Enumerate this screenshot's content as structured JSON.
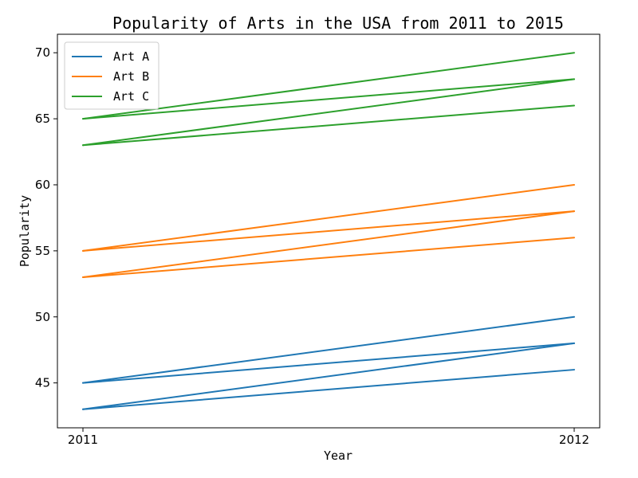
{
  "chart_data": {
    "type": "line",
    "title": "Popularity of Arts in the USA from 2011 to 2015",
    "xlabel": "Year",
    "ylabel": "Popularity",
    "x": [
      2011,
      2012
    ],
    "ylim": [
      41.6,
      71.4
    ],
    "yticks": [
      45,
      50,
      55,
      60,
      65,
      70
    ],
    "xticks": [
      "2011",
      "2012"
    ],
    "legend": {
      "placement": "top-left",
      "entries": [
        "Art A",
        "Art B",
        "Art C"
      ]
    },
    "series": [
      {
        "name": "Art A",
        "color": "#1f77b4",
        "values": [
          45,
          50
        ]
      },
      {
        "name": "Art A",
        "color": "#1f77b4",
        "values": [
          45,
          48
        ]
      },
      {
        "name": "Art A",
        "color": "#1f77b4",
        "values": [
          43,
          48
        ]
      },
      {
        "name": "Art A",
        "color": "#1f77b4",
        "values": [
          43,
          46
        ]
      },
      {
        "name": "Art B",
        "color": "#ff7f0e",
        "values": [
          55,
          60
        ]
      },
      {
        "name": "Art B",
        "color": "#ff7f0e",
        "values": [
          55,
          58
        ]
      },
      {
        "name": "Art B",
        "color": "#ff7f0e",
        "values": [
          53,
          58
        ]
      },
      {
        "name": "Art B",
        "color": "#ff7f0e",
        "values": [
          53,
          56
        ]
      },
      {
        "name": "Art C",
        "color": "#2ca02c",
        "values": [
          65,
          70
        ]
      },
      {
        "name": "Art C",
        "color": "#2ca02c",
        "values": [
          65,
          68
        ]
      },
      {
        "name": "Art C",
        "color": "#2ca02c",
        "values": [
          63,
          68
        ]
      },
      {
        "name": "Art C",
        "color": "#2ca02c",
        "values": [
          63,
          66
        ]
      }
    ],
    "grid": false
  }
}
